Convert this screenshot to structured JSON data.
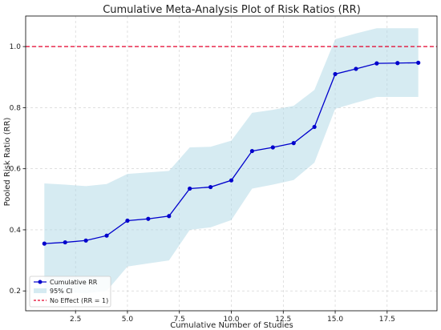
{
  "chart_data": {
    "type": "line",
    "title": "Cumulative Meta-Analysis Plot of Risk Ratios (RR)",
    "xlabel": "Cumulative Number of Studies",
    "ylabel": "Pooled Risk Ratio (RR)",
    "xlim": [
      0.1,
      19.9
    ],
    "ylim": [
      0.135,
      1.1
    ],
    "xticks": [
      2.5,
      5.0,
      7.5,
      10.0,
      12.5,
      15.0,
      17.5
    ],
    "xtick_labels": [
      "2.5",
      "5.0",
      "7.5",
      "10.0",
      "12.5",
      "15.0",
      "17.5"
    ],
    "yticks": [
      0.2,
      0.4,
      0.6,
      0.8,
      1.0
    ],
    "ytick_labels": [
      "0.2",
      "0.4",
      "0.6",
      "0.8",
      "1.0"
    ],
    "grid": true,
    "legend_position": "bottom-left",
    "x": [
      1,
      2,
      3,
      4,
      5,
      6,
      7,
      8,
      9,
      10,
      11,
      12,
      13,
      14,
      15,
      16,
      17,
      18,
      19
    ],
    "series": [
      {
        "name": "Cumulative RR",
        "color": "#0000cc",
        "values": [
          0.355,
          0.359,
          0.365,
          0.381,
          0.43,
          0.436,
          0.445,
          0.535,
          0.54,
          0.562,
          0.658,
          0.67,
          0.684,
          0.737,
          0.91,
          0.927,
          0.945,
          0.946,
          0.947
        ]
      },
      {
        "name": "95% CI",
        "color": "#add8e6",
        "lower": [
          0.2,
          0.195,
          0.192,
          0.2,
          0.28,
          0.29,
          0.3,
          0.4,
          0.408,
          0.432,
          0.535,
          0.548,
          0.563,
          0.62,
          0.796,
          0.816,
          0.835,
          0.835,
          0.835
        ],
        "upper": [
          0.552,
          0.548,
          0.543,
          0.55,
          0.583,
          0.588,
          0.593,
          0.67,
          0.672,
          0.692,
          0.783,
          0.793,
          0.806,
          0.858,
          1.024,
          1.043,
          1.06,
          1.06,
          1.06
        ]
      }
    ],
    "reference_line": {
      "name": "No Effect (RR = 1)",
      "y": 1.0,
      "color": "#e4002b",
      "style": "dashed"
    },
    "legend": [
      "Cumulative RR",
      "95% CI",
      "No Effect (RR = 1)"
    ]
  }
}
